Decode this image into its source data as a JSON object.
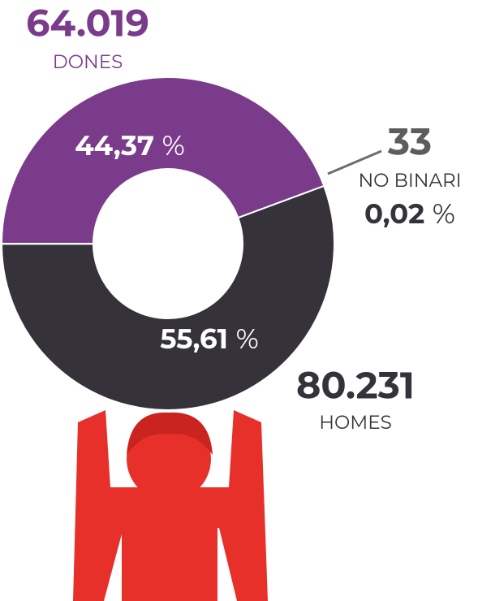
{
  "chart_data": {
    "type": "donut",
    "categories": [
      "DONES",
      "HOMES",
      "NO BINARI"
    ],
    "values": [
      44.37,
      55.61,
      0.02
    ],
    "value_labels": [
      "44,37",
      "55,61",
      "0,02"
    ],
    "percent_sign": "%",
    "counts": [
      64019,
      80231,
      33
    ],
    "count_labels": [
      "64.019",
      "80.231",
      "33"
    ],
    "colors": [
      "#7b3b8b",
      "#36323a",
      "#b8b8b8"
    ]
  }
}
